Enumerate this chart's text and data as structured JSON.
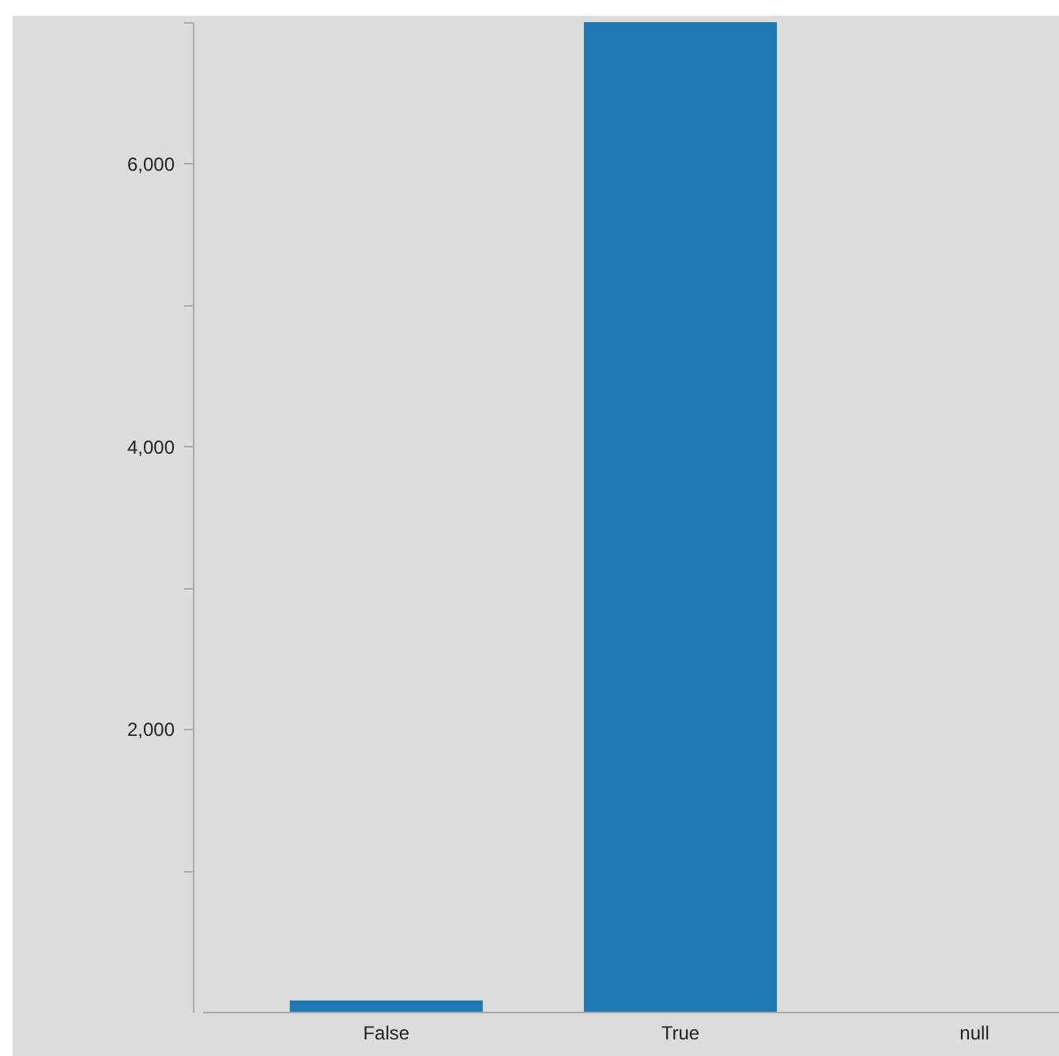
{
  "chart_data": {
    "type": "bar",
    "categories": [
      "False",
      "True",
      "null"
    ],
    "values": [
      80,
      7000,
      0
    ],
    "color": "#1f77b4",
    "ylim": [
      0,
      7000
    ],
    "yticks": [
      {
        "value": 1000,
        "label": null
      },
      {
        "value": 2000,
        "label": "2,000"
      },
      {
        "value": 3000,
        "label": null
      },
      {
        "value": 4000,
        "label": "4,000"
      },
      {
        "value": 5000,
        "label": null
      },
      {
        "value": 6000,
        "label": "6,000"
      },
      {
        "value": 7000,
        "label": null
      }
    ]
  }
}
